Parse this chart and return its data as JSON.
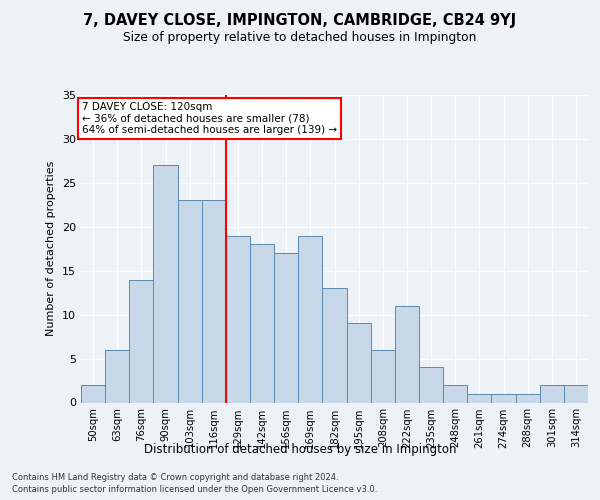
{
  "title_line1": "7, DAVEY CLOSE, IMPINGTON, CAMBRIDGE, CB24 9YJ",
  "title_line2": "Size of property relative to detached houses in Impington",
  "xlabel": "Distribution of detached houses by size in Impington",
  "ylabel": "Number of detached properties",
  "categories": [
    "50sqm",
    "63sqm",
    "76sqm",
    "90sqm",
    "103sqm",
    "116sqm",
    "129sqm",
    "142sqm",
    "156sqm",
    "169sqm",
    "182sqm",
    "195sqm",
    "208sqm",
    "222sqm",
    "235sqm",
    "248sqm",
    "261sqm",
    "274sqm",
    "288sqm",
    "301sqm",
    "314sqm"
  ],
  "values": [
    2,
    6,
    14,
    27,
    23,
    23,
    19,
    18,
    17,
    19,
    13,
    9,
    6,
    11,
    4,
    2,
    1,
    1,
    1,
    2,
    2
  ],
  "bar_color": "#c8d8e8",
  "bar_edge_color": "#5a8ab0",
  "annotation_title": "7 DAVEY CLOSE: 120sqm",
  "annotation_line1": "← 36% of detached houses are smaller (78)",
  "annotation_line2": "64% of semi-detached houses are larger (139) →",
  "vline_position": 5.5,
  "ylim": [
    0,
    35
  ],
  "yticks": [
    0,
    5,
    10,
    15,
    20,
    25,
    30,
    35
  ],
  "background_color": "#edf2f7",
  "plot_background": "#edf2f7",
  "grid_color": "#ffffff",
  "footer_line1": "Contains HM Land Registry data © Crown copyright and database right 2024.",
  "footer_line2": "Contains public sector information licensed under the Open Government Licence v3.0."
}
